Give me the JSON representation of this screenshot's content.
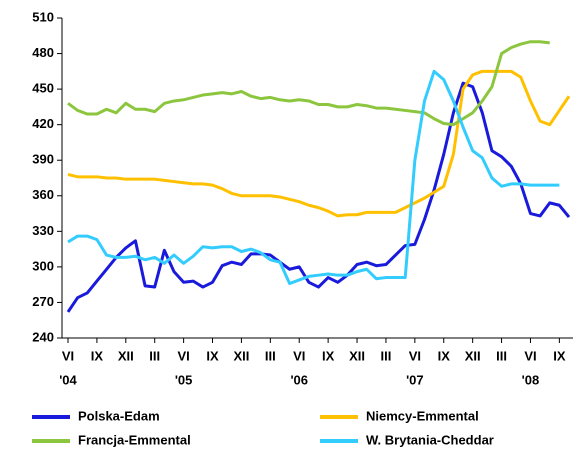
{
  "chart_data": {
    "type": "line",
    "categories": [
      "VI",
      null,
      null,
      "IX",
      null,
      null,
      "XII",
      null,
      null,
      "III",
      null,
      null,
      "VI",
      null,
      null,
      "IX",
      null,
      null,
      "XII",
      null,
      null,
      "III",
      null,
      null,
      "VI",
      null,
      null,
      "IX",
      null,
      null,
      "XII",
      null,
      null,
      "III",
      null,
      null,
      "VI",
      null,
      null,
      "IX",
      null,
      null,
      "XII",
      null,
      null,
      "III",
      null,
      null,
      "VI",
      null,
      null,
      "IX",
      null
    ],
    "category_years": [
      "'04",
      null,
      null,
      null,
      null,
      null,
      null,
      null,
      null,
      null,
      null,
      null,
      "'05",
      null,
      null,
      null,
      null,
      null,
      null,
      null,
      null,
      null,
      null,
      null,
      "'06",
      null,
      null,
      null,
      null,
      null,
      null,
      null,
      null,
      null,
      null,
      null,
      "'07",
      null,
      null,
      null,
      null,
      null,
      null,
      null,
      null,
      null,
      null,
      null,
      "'08",
      null,
      null,
      null,
      null
    ],
    "series": [
      {
        "name": "Polska-Edam",
        "color": "#1a1adc",
        "values": [
          262,
          274,
          278,
          288,
          298,
          308,
          316,
          322,
          284,
          283,
          314,
          296,
          287,
          288,
          283,
          287,
          301,
          304,
          302,
          311,
          311,
          310,
          304,
          298,
          300,
          287,
          283,
          291,
          287,
          293,
          302,
          304,
          301,
          302,
          310,
          318,
          319,
          340,
          365,
          395,
          430,
          455,
          452,
          430,
          398,
          393,
          385,
          370,
          345,
          343,
          354,
          352,
          342
        ]
      },
      {
        "name": "Niemcy-Emmental",
        "color": "#ffc000",
        "values": [
          378,
          376,
          376,
          376,
          375,
          375,
          374,
          374,
          374,
          374,
          373,
          372,
          371,
          370,
          370,
          369,
          366,
          362,
          360,
          360,
          360,
          360,
          359,
          357,
          355,
          352,
          350,
          347,
          343,
          344,
          344,
          346,
          346,
          346,
          346,
          350,
          354,
          358,
          363,
          368,
          395,
          450,
          462,
          465,
          465,
          465,
          465,
          460,
          440,
          423,
          420,
          432,
          444
        ]
      },
      {
        "name": "Francja-Emmental",
        "color": "#8cc63f",
        "values": [
          438,
          432,
          429,
          429,
          433,
          430,
          438,
          433,
          433,
          431,
          438,
          440,
          441,
          443,
          445,
          446,
          447,
          446,
          448,
          444,
          442,
          443,
          441,
          440,
          441,
          440,
          437,
          437,
          435,
          435,
          437,
          436,
          434,
          434,
          433,
          432,
          431,
          430,
          425,
          421,
          420,
          425,
          430,
          440,
          452,
          480,
          485,
          488,
          490,
          490,
          489,
          null,
          null
        ]
      },
      {
        "name": "W. Brytania-Cheddar",
        "color": "#33ccff",
        "values": [
          321,
          326,
          326,
          323,
          310,
          308,
          308,
          309,
          306,
          308,
          303,
          310,
          303,
          309,
          317,
          316,
          317,
          317,
          313,
          315,
          312,
          306,
          304,
          286,
          289,
          292,
          293,
          294,
          293,
          293,
          296,
          298,
          290,
          291,
          291,
          291,
          390,
          440,
          465,
          458,
          440,
          418,
          398,
          392,
          375,
          368,
          370,
          370,
          369,
          369,
          369,
          369,
          null
        ]
      }
    ],
    "ylim": [
      240,
      510
    ],
    "yticks": [
      240,
      270,
      300,
      330,
      360,
      390,
      420,
      450,
      480,
      510
    ]
  }
}
